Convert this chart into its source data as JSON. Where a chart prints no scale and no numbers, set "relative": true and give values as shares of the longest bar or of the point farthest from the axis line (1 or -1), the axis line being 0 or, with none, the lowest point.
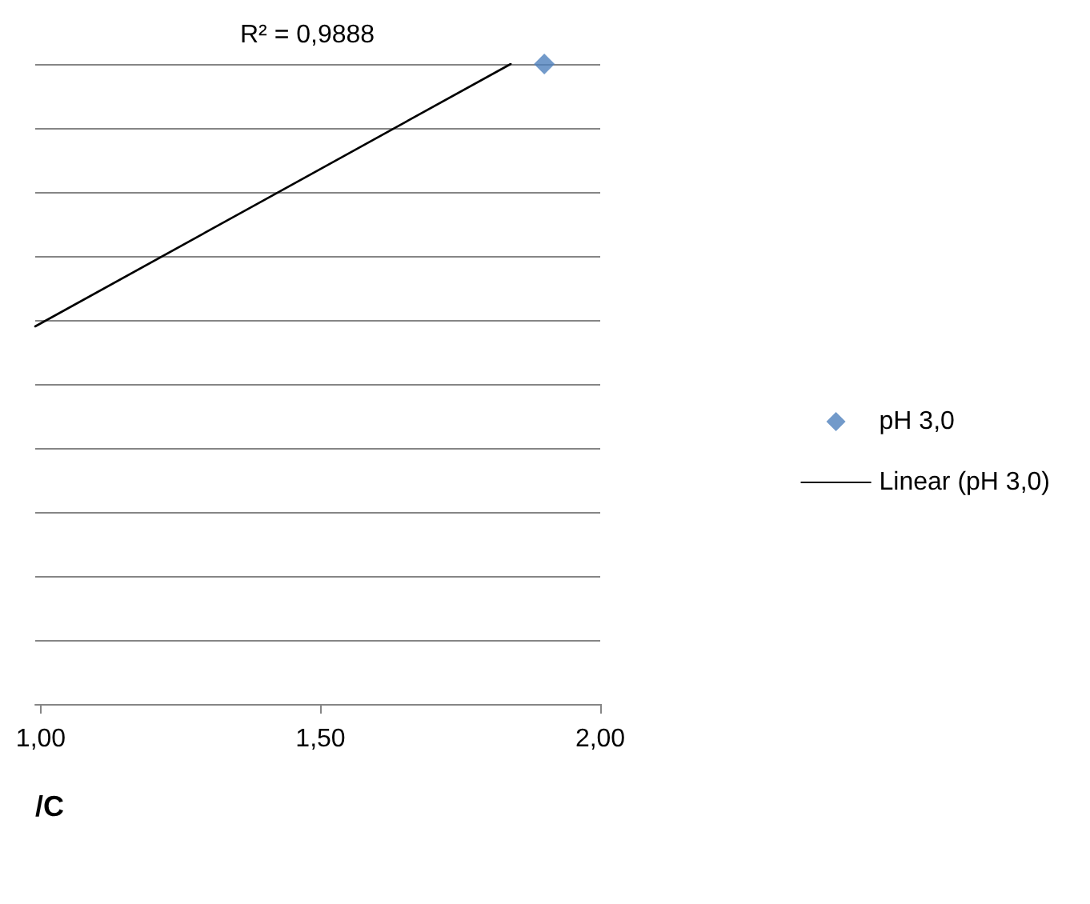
{
  "chart_data": {
    "type": "scatter",
    "xlabel": "/C",
    "annotations": [
      "R² = 0,9888"
    ],
    "relative": true,
    "grid": "y",
    "legend": "right",
    "xlim": [
      0.99,
      2.0
    ],
    "xticks": [
      {
        "value": 1,
        "label": "1,00"
      },
      {
        "value": 1.5,
        "label": "1,50"
      },
      {
        "value": 2,
        "label": "2,00"
      }
    ],
    "series": [
      {
        "name": "pH 3,0",
        "color": "#4f81bd",
        "marker": "diamond",
        "x": [
          1.9
        ],
        "values": [
          1.0
        ]
      },
      {
        "name": "Linear (pH 3,0)",
        "type": "line",
        "marker": "none",
        "color": "#000000",
        "x": [
          0.99,
          1.84
        ],
        "values": [
          0.59,
          1.0
        ]
      }
    ]
  }
}
